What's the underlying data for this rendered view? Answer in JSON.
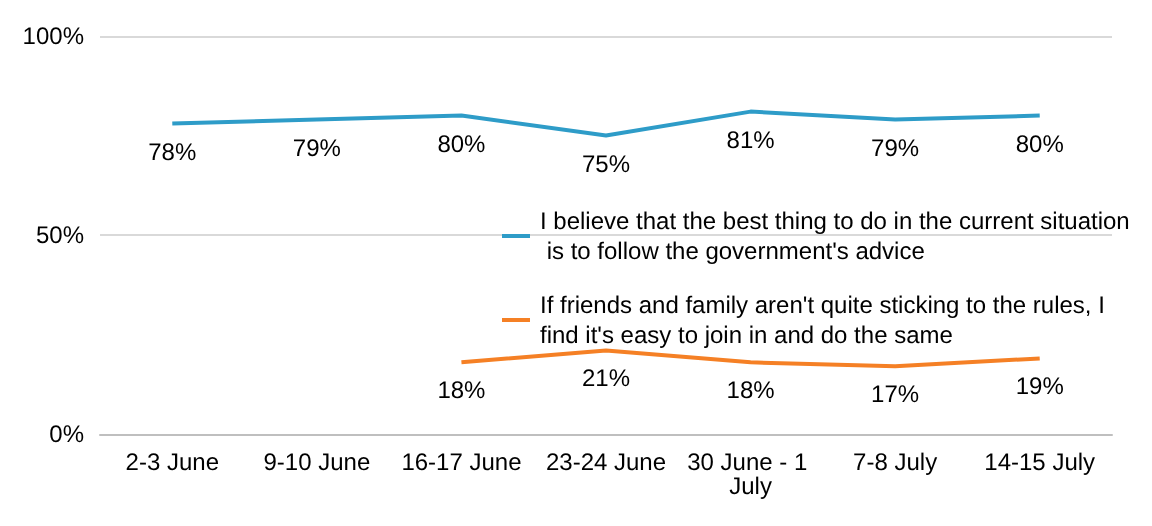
{
  "chart_data": {
    "type": "line",
    "categories": [
      "2-3 June",
      "9-10 June",
      "16-17 June",
      "23-24 June",
      "30 June - 1 July",
      "7-8 July",
      "14-15 July"
    ],
    "series": [
      {
        "name": "I believe that the best thing to do in the current situation is to follow the government's advice",
        "color": "#2e9cc8",
        "values": [
          78,
          79,
          80,
          75,
          81,
          79,
          80
        ],
        "value_labels": [
          "78%",
          "79%",
          "80%",
          "75%",
          "81%",
          "79%",
          "80%"
        ]
      },
      {
        "name": "If friends and family aren't quite sticking to the rules, I find it's easy to join in and do the same",
        "color": "#f58025",
        "values": [
          null,
          null,
          18,
          21,
          18,
          17,
          19
        ],
        "value_labels": [
          null,
          null,
          "18%",
          "21%",
          "18%",
          "17%",
          "19%"
        ]
      }
    ],
    "ylim": [
      0,
      100
    ],
    "yticks": [
      {
        "value": 0,
        "label": "0%"
      },
      {
        "value": 50,
        "label": "50%"
      },
      {
        "value": 100,
        "label": "100%"
      }
    ],
    "grid": "y",
    "legend": "right",
    "marker": "none"
  }
}
